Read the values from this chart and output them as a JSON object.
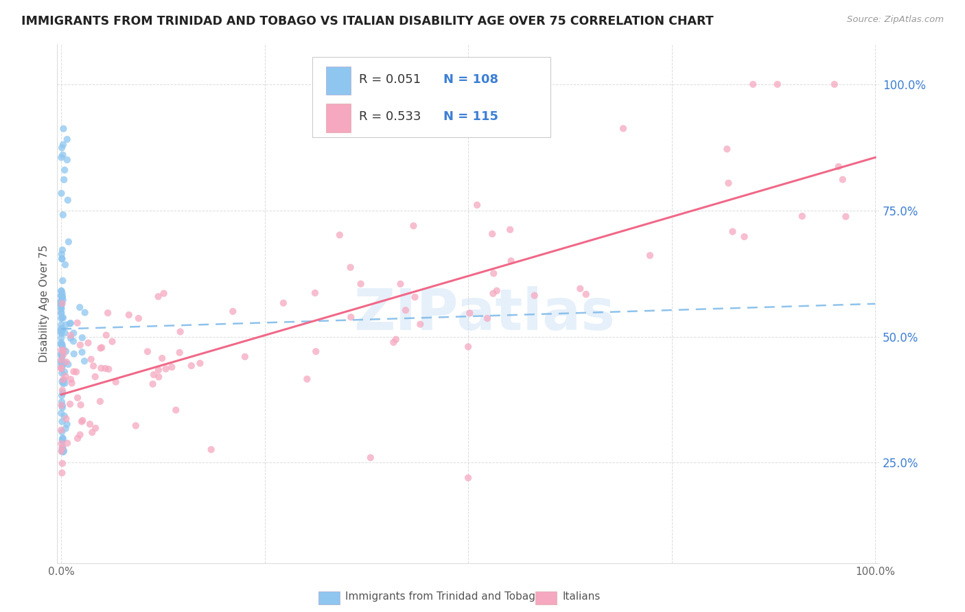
{
  "title": "IMMIGRANTS FROM TRINIDAD AND TOBAGO VS ITALIAN DISABILITY AGE OVER 75 CORRELATION CHART",
  "source": "Source: ZipAtlas.com",
  "ylabel": "Disability Age Over 75",
  "ytick_labels": [
    "25.0%",
    "50.0%",
    "75.0%",
    "100.0%"
  ],
  "ytick_positions": [
    0.25,
    0.5,
    0.75,
    1.0
  ],
  "watermark": "ZIPatlas",
  "legend_r1": "0.051",
  "legend_n1": "108",
  "legend_r2": "0.533",
  "legend_n2": "115",
  "color_blue": "#8ec6f0",
  "color_pink": "#f5a8c0",
  "color_blue_text": "#3d7fd4",
  "trendline_blue_color": "#7ab8e8",
  "trendline_pink_color": "#f06888",
  "background_color": "#ffffff",
  "grid_color": "#cccccc",
  "title_color": "#222222",
  "blue_trendline": {
    "x_start": 0.0,
    "x_end": 1.0,
    "y_start": 0.515,
    "y_end": 0.565
  },
  "pink_trendline": {
    "x_start": 0.0,
    "x_end": 1.0,
    "y_start": 0.385,
    "y_end": 0.855
  },
  "xlim": [
    -0.005,
    1.005
  ],
  "ylim": [
    0.05,
    1.08
  ]
}
